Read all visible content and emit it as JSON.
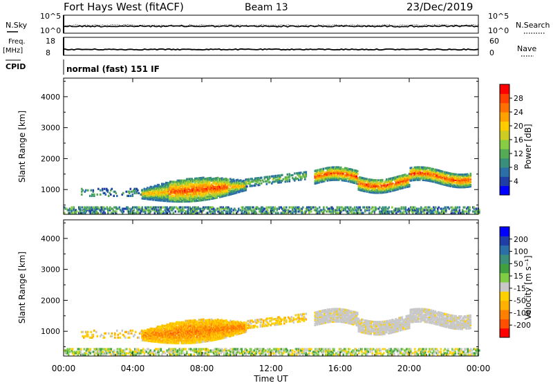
{
  "header": {
    "title": "Fort Hays West (fitACF)",
    "beam": "Beam 13",
    "date": "23/Dec/2019"
  },
  "panels": {
    "nsky": {
      "label": "N.Sky",
      "ticks": [
        "10^5",
        "10^0"
      ]
    },
    "nsearch": {
      "label": "N.Search",
      "ticks": [
        "10^5",
        "10^0"
      ]
    },
    "freq": {
      "label1": "Freq.",
      "label2": "[MHz]",
      "ticks": [
        "18",
        "8"
      ]
    },
    "nave": {
      "label": "Nave",
      "ticks": [
        "60",
        "0"
      ]
    },
    "cpid": {
      "label": "CPID",
      "value": "normal (fast) 151 IF"
    }
  },
  "colors": {
    "power": [
      "#0000ff",
      "#1f3fa6",
      "#2b6fa8",
      "#3a8f7a",
      "#55aa55",
      "#88cc44",
      "#cccc22",
      "#ffcc00",
      "#ffa000",
      "#ff7000",
      "#ff4000",
      "#ff0000"
    ],
    "velocity": [
      "#ff0000",
      "#ff5000",
      "#ff8000",
      "#ffb000",
      "#ffd000",
      "#c8c8c8",
      "#80cc44",
      "#40a040",
      "#3a8f7a",
      "#2b6fa8",
      "#1f3fa6",
      "#0000ff"
    ]
  },
  "chart_data": [
    {
      "type": "heatmap",
      "name": "power",
      "xlabel": "Time UT",
      "ylabel": "Slant Range [km]",
      "ylim": [
        200,
        4600
      ],
      "yticks": [
        "1000",
        "2000",
        "3000",
        "4000"
      ],
      "xticks": [
        "00:00",
        "04:00",
        "08:00",
        "12:00",
        "16:00",
        "20:00",
        "00:00"
      ],
      "colorbar": {
        "label": "Power [dB]",
        "ticks": [
          "4",
          "8",
          "12",
          "16",
          "20",
          "24",
          "28"
        ]
      }
    },
    {
      "type": "heatmap",
      "name": "velocity",
      "xlabel": "Time UT",
      "ylabel": "Slant Range [km]",
      "ylim": [
        200,
        4600
      ],
      "yticks": [
        "1000",
        "2000",
        "3000",
        "4000"
      ],
      "xticks": [
        "00:00",
        "04:00",
        "08:00",
        "12:00",
        "16:00",
        "20:00",
        "00:00"
      ],
      "colorbar": {
        "label": "Velocity [m s⁻¹]",
        "ticks": [
          "-200",
          "-100",
          "-50",
          "-15",
          "15",
          "50",
          "100",
          "200"
        ]
      }
    }
  ]
}
